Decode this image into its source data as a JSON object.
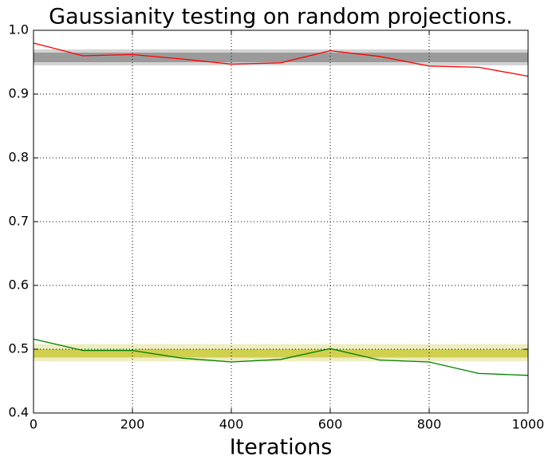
{
  "chart_data": {
    "type": "line",
    "title": "Gaussianity testing on random projections.",
    "x_label": "Iterations",
    "x": [
      0,
      100,
      200,
      300,
      400,
      500,
      600,
      700,
      800,
      900,
      1000
    ],
    "series": [
      {
        "color": "#ff0000",
        "values": [
          0.98,
          0.96,
          0.962,
          0.955,
          0.947,
          0.949,
          0.968,
          0.959,
          0.944,
          0.942,
          0.928
        ]
      },
      {
        "color": "#008000",
        "values": [
          0.516,
          0.498,
          0.498,
          0.486,
          0.48,
          0.484,
          0.501,
          0.483,
          0.48,
          0.462,
          0.459
        ]
      }
    ],
    "bands": [
      {
        "color": "#c8c8c8",
        "ymin": 0.945,
        "ymax": 0.97
      },
      {
        "color": "#8c8c8c",
        "ymin": 0.95,
        "ymax": 0.965
      },
      {
        "color": "#e8e8b0",
        "ymin": 0.481,
        "ymax": 0.508
      },
      {
        "color": "#c8c832",
        "ymin": 0.487,
        "ymax": 0.5
      }
    ],
    "xlim": [
      0,
      1000
    ],
    "xticks": [
      0,
      200,
      400,
      600,
      800,
      1000
    ],
    "ylim": [
      0.4,
      1
    ],
    "yticks": [
      0.4,
      0.5,
      0.6,
      0.7,
      0.8,
      0.9,
      {
        "value": 1,
        "label": "1.0"
      }
    ],
    "grid": true
  }
}
